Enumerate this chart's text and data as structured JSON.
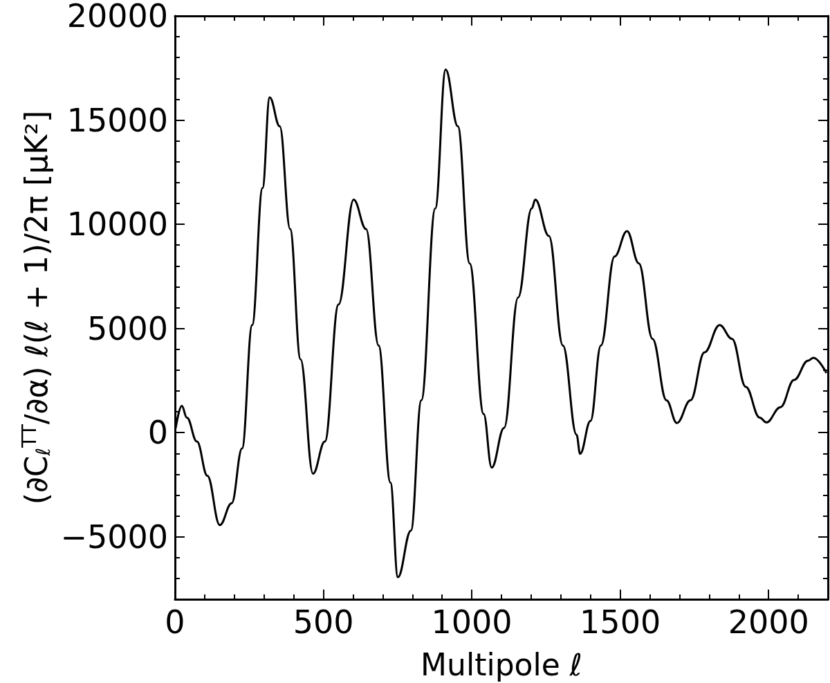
{
  "chart_data": {
    "type": "line",
    "xlabel": "Multipole ℓ",
    "ylabel": "(∂C$_{ℓ}$$^{TT}$/∂α) ℓ(ℓ + 1)/2π [μK²]",
    "xlim": [
      0,
      2200
    ],
    "ylim": [
      -8000,
      20000
    ],
    "xticks": [
      0,
      500,
      1000,
      1500,
      2000
    ],
    "yticks": [
      -5000,
      0,
      5000,
      10000,
      15000,
      20000
    ],
    "grid": false,
    "marker": "none",
    "line_style": "solid",
    "series": [
      {
        "color": "#000000",
        "x": [
          2,
          23,
          40,
          74,
          109,
          151,
          191,
          226,
          260,
          295,
          319,
          353,
          388,
          423,
          465,
          505,
          551,
          602,
          644,
          686,
          726,
          751,
          795,
          830,
          877,
          912,
          953,
          993,
          1040,
          1067,
          1109,
          1156,
          1202,
          1214,
          1260,
          1307,
          1353,
          1365,
          1400,
          1435,
          1481,
          1523,
          1563,
          1609,
          1656,
          1691,
          1737,
          1784,
          1835,
          1877,
          1923,
          1970,
          1993,
          2040,
          2086,
          2133,
          2151,
          2195
        ],
        "values": [
          200,
          1280,
          720,
          -430,
          -2070,
          -4440,
          -3390,
          -760,
          5160,
          11740,
          16090,
          14700,
          9770,
          3520,
          -1970,
          -430,
          6150,
          11180,
          9770,
          4180,
          -2400,
          -6940,
          -4700,
          1550,
          10760,
          17430,
          14700,
          8120,
          890,
          -1680,
          230,
          6480,
          10760,
          11180,
          9440,
          4180,
          -100,
          -1020,
          560,
          4180,
          8450,
          9670,
          8120,
          4500,
          1550,
          460,
          1550,
          3850,
          5160,
          4500,
          2200,
          720,
          490,
          1220,
          2530,
          3450,
          3590,
          2860
        ]
      }
    ]
  }
}
